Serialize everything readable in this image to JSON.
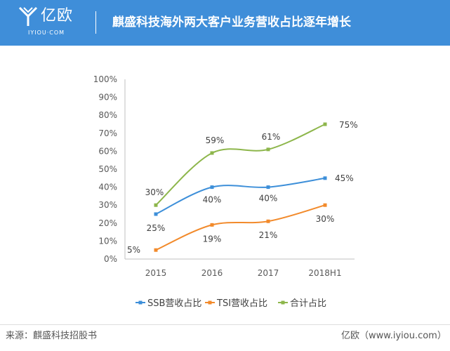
{
  "header": {
    "logo_text": "亿欧",
    "logo_sub": "IYIOU·COM",
    "title": "麒盛科技海外两大客户业务营收占比逐年增长"
  },
  "footer": {
    "source": "来源：麒盛科技招股书",
    "brand": "亿欧（www.iyiou.com）"
  },
  "colors": {
    "header_bg": "#3f8ed9",
    "ssb": "#3d8fd9",
    "tsi": "#f28a2b",
    "total": "#8db64b"
  },
  "chart_data": {
    "type": "line",
    "categories": [
      "2015",
      "2016",
      "2017",
      "2018H1"
    ],
    "ylim": [
      0,
      100
    ],
    "yticks": [
      "0%",
      "10%",
      "20%",
      "30%",
      "40%",
      "50%",
      "60%",
      "70%",
      "80%",
      "90%",
      "100%"
    ],
    "series": [
      {
        "name": "SSB营收占比",
        "values": [
          25,
          40,
          40,
          45
        ],
        "labels": [
          "25%",
          "40%",
          "40%",
          "45%"
        ],
        "color": "#3d8fd9"
      },
      {
        "name": "TSI营收占比",
        "values": [
          5,
          19,
          21,
          30
        ],
        "labels": [
          "5%",
          "19%",
          "21%",
          "30%"
        ],
        "color": "#f28a2b"
      },
      {
        "name": "合计占比",
        "values": [
          30,
          59,
          61,
          75
        ],
        "labels": [
          "30%",
          "59%",
          "61%",
          "75%"
        ],
        "color": "#8db64b"
      }
    ],
    "legend_position": "bottom",
    "grid": false
  }
}
